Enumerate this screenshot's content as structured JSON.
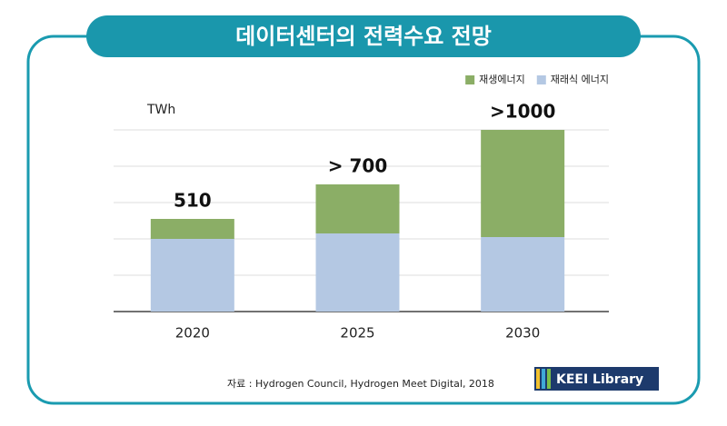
{
  "title": "데이터센터의 전력수요 전망",
  "chart_data": {
    "type": "stacked_bar",
    "y_label": "TWh",
    "categories": [
      "2020",
      "2025",
      "2030"
    ],
    "series": [
      {
        "name": "재래식 에너지",
        "color": "#b4c8e3",
        "values": [
          400,
          430,
          410
        ]
      },
      {
        "name": "재생에너지",
        "color": "#8bae66",
        "values": [
          110,
          270,
          590
        ]
      }
    ],
    "totals": [
      510,
      700,
      1000
    ],
    "total_labels": [
      "510",
      "> 700",
      ">1000"
    ],
    "ylim": [
      0,
      1200
    ],
    "yticks": [
      0,
      200,
      400,
      600,
      800,
      1000
    ],
    "grid": true,
    "legend": "top-right"
  },
  "source": "자료 : Hydrogen Council, Hydrogen Meet Digital, 2018",
  "badge": "KEEI Library"
}
